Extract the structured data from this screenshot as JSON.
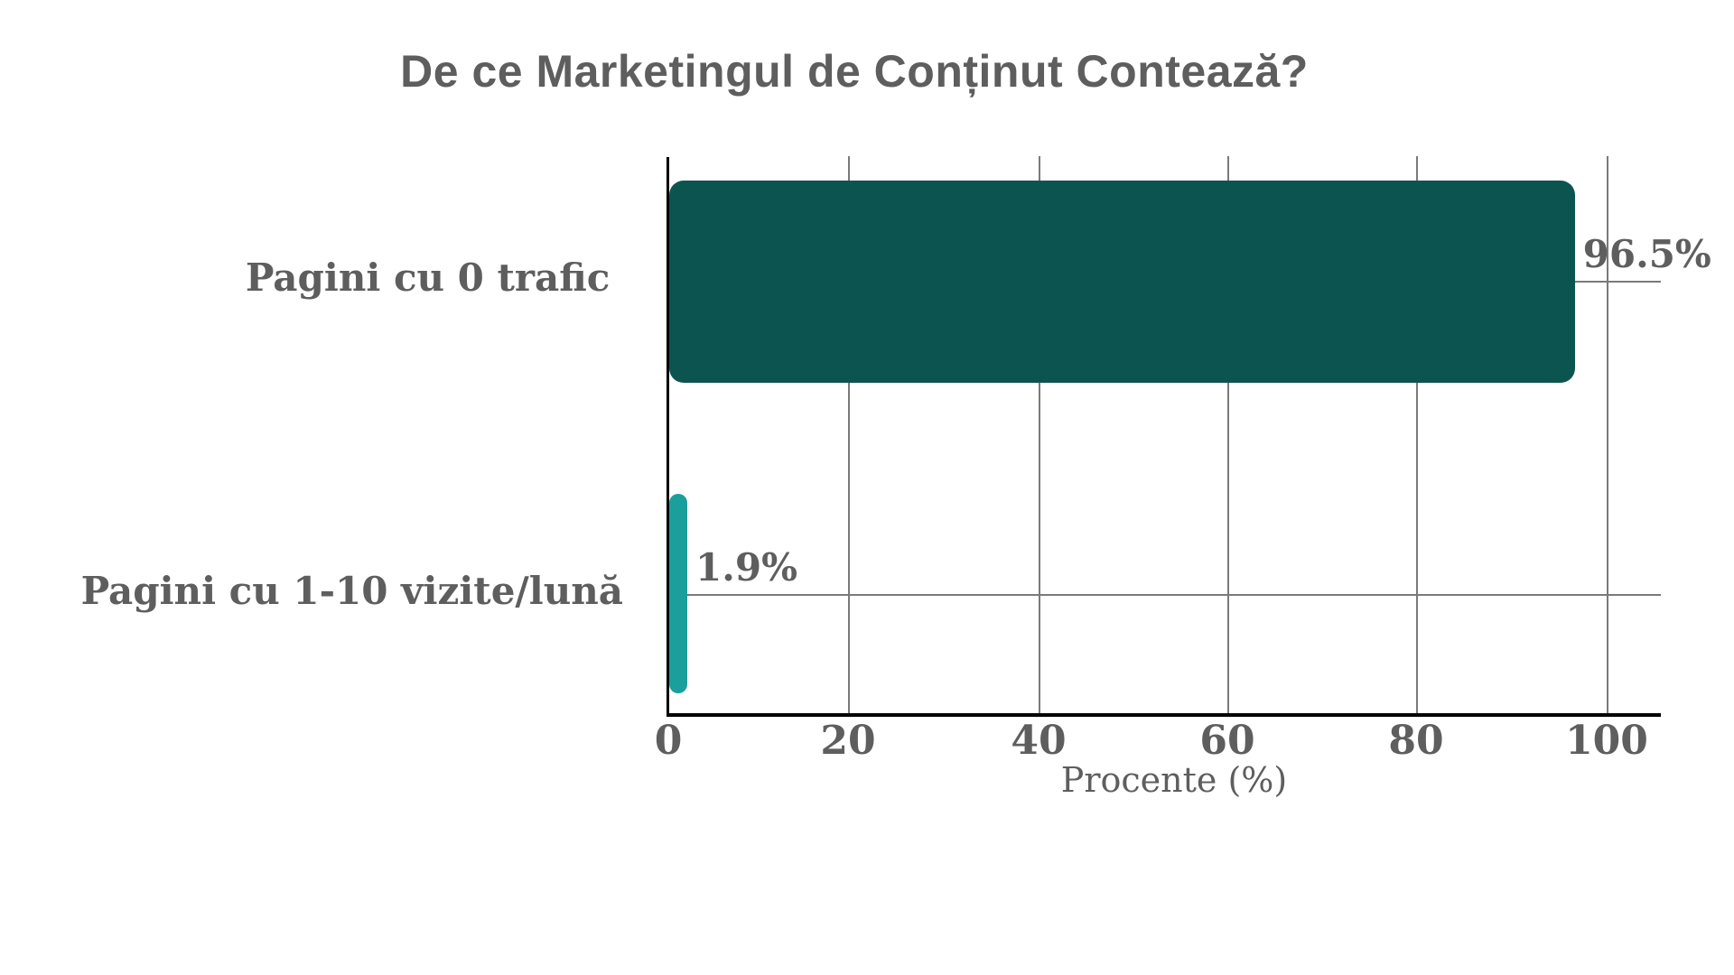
{
  "chart_data": {
    "type": "bar",
    "orientation": "horizontal",
    "title": "De ce Marketingul de Conținut Contează?",
    "categories": [
      "Pagini cu 0 trafic ",
      "Pagini cu 1-10 vizite/lună"
    ],
    "values": [
      96.5,
      1.9
    ],
    "value_labels": [
      "96.5%",
      "1.9%"
    ],
    "colors": [
      "#0b5450",
      "#1a9f9c"
    ],
    "xlabel": "Procente (%)",
    "ylabel": "",
    "xlim": [
      0,
      105
    ],
    "xticks": [
      0,
      20,
      40,
      60,
      80,
      100
    ],
    "xtick_labels": [
      "0",
      "20",
      "40",
      "60",
      "80",
      "100"
    ],
    "grid": true,
    "legend": null
  },
  "colors": {
    "text": "#5e5e5e",
    "grid": "#7a7a7a",
    "axis": "#000000",
    "background": "#ffffff"
  }
}
